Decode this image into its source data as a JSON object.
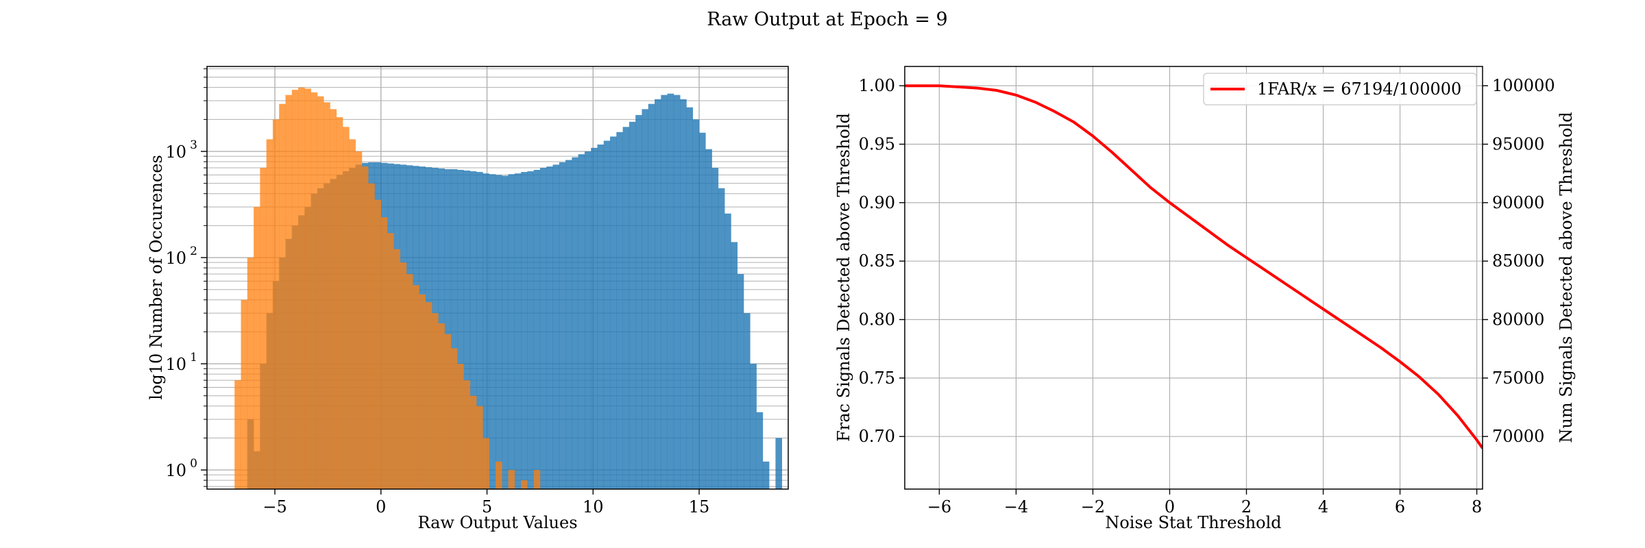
{
  "figure": {
    "suptitle": "Raw Output at Epoch = 9"
  },
  "colors": {
    "blue": "#1f77b4",
    "orange": "#ff7f0e",
    "red": "#ff0000",
    "grid": "#b0b0b0"
  },
  "chart_data": [
    {
      "type": "histogram",
      "xlabel": "Raw Output Values",
      "ylabel": "log10 Number of Occurences",
      "xlim": [
        -8.2,
        19.2
      ],
      "ylim_log10": [
        -0.18,
        3.8
      ],
      "y_scale": "log",
      "grid": true,
      "x_ticks": [
        -5,
        0,
        5,
        10,
        15
      ],
      "x_tick_labels": [
        "−5",
        "0",
        "5",
        "10",
        "15"
      ],
      "y_ticks": [
        1,
        10,
        100,
        1000
      ],
      "y_tick_labels": [
        "10",
        "10",
        "10",
        "10"
      ],
      "y_tick_exponents": [
        "0",
        "1",
        "2",
        "3"
      ],
      "series": [
        {
          "color": "blue",
          "opacity": 0.8,
          "bins": [
            [
              -6.9,
              0
            ],
            [
              -6.3,
              3
            ],
            [
              -6.0,
              1.5
            ],
            [
              -5.7,
              10
            ],
            [
              -5.4,
              30
            ],
            [
              -5.1,
              60
            ],
            [
              -4.8,
              100
            ],
            [
              -4.5,
              150
            ],
            [
              -4.2,
              200
            ],
            [
              -3.9,
              250
            ],
            [
              -3.6,
              300
            ],
            [
              -3.3,
              400
            ],
            [
              -3.0,
              450
            ],
            [
              -2.7,
              500
            ],
            [
              -2.4,
              550
            ],
            [
              -2.1,
              600
            ],
            [
              -1.8,
              650
            ],
            [
              -1.5,
              700
            ],
            [
              -1.2,
              750
            ],
            [
              -0.9,
              780
            ],
            [
              -0.6,
              790
            ],
            [
              -0.3,
              790
            ],
            [
              0.0,
              780
            ],
            [
              0.3,
              770
            ],
            [
              0.6,
              760
            ],
            [
              0.9,
              750
            ],
            [
              1.2,
              740
            ],
            [
              1.5,
              730
            ],
            [
              1.8,
              720
            ],
            [
              2.1,
              710
            ],
            [
              2.4,
              700
            ],
            [
              2.7,
              690
            ],
            [
              3.0,
              680
            ],
            [
              3.3,
              680
            ],
            [
              3.6,
              670
            ],
            [
              3.9,
              660
            ],
            [
              4.2,
              650
            ],
            [
              4.5,
              640
            ],
            [
              4.8,
              620
            ],
            [
              5.1,
              610
            ],
            [
              5.4,
              600
            ],
            [
              5.7,
              590
            ],
            [
              6.0,
              610
            ],
            [
              6.3,
              620
            ],
            [
              6.6,
              640
            ],
            [
              6.9,
              650
            ],
            [
              7.2,
              670
            ],
            [
              7.5,
              700
            ],
            [
              7.8,
              720
            ],
            [
              8.1,
              750
            ],
            [
              8.4,
              790
            ],
            [
              8.7,
              830
            ],
            [
              9.0,
              880
            ],
            [
              9.3,
              940
            ],
            [
              9.6,
              1000
            ],
            [
              9.9,
              1080
            ],
            [
              10.2,
              1160
            ],
            [
              10.5,
              1260
            ],
            [
              10.8,
              1380
            ],
            [
              11.1,
              1520
            ],
            [
              11.4,
              1700
            ],
            [
              11.7,
              1900
            ],
            [
              12.0,
              2200
            ],
            [
              12.3,
              2500
            ],
            [
              12.6,
              2800
            ],
            [
              12.9,
              3100
            ],
            [
              13.2,
              3400
            ],
            [
              13.5,
              3500
            ],
            [
              13.8,
              3400
            ],
            [
              14.1,
              3100
            ],
            [
              14.4,
              2600
            ],
            [
              14.7,
              2000
            ],
            [
              15.0,
              1500
            ],
            [
              15.3,
              1050
            ],
            [
              15.6,
              700
            ],
            [
              15.9,
              450
            ],
            [
              16.2,
              260
            ],
            [
              16.5,
              140
            ],
            [
              16.8,
              70
            ],
            [
              17.1,
              30
            ],
            [
              17.4,
              10
            ],
            [
              17.7,
              3.5
            ],
            [
              18.0,
              1.2
            ],
            [
              18.3,
              0
            ],
            [
              18.6,
              2
            ]
          ]
        },
        {
          "color": "orange",
          "opacity": 0.75,
          "bins": [
            [
              -7.2,
              0
            ],
            [
              -6.9,
              7
            ],
            [
              -6.6,
              40
            ],
            [
              -6.3,
              100
            ],
            [
              -6.0,
              300
            ],
            [
              -5.7,
              700
            ],
            [
              -5.4,
              1300
            ],
            [
              -5.1,
              2000
            ],
            [
              -4.8,
              2800
            ],
            [
              -4.5,
              3400
            ],
            [
              -4.2,
              3800
            ],
            [
              -3.9,
              4000
            ],
            [
              -3.6,
              3900
            ],
            [
              -3.3,
              3600
            ],
            [
              -3.0,
              3300
            ],
            [
              -2.7,
              2900
            ],
            [
              -2.4,
              2500
            ],
            [
              -2.1,
              2100
            ],
            [
              -1.8,
              1700
            ],
            [
              -1.5,
              1300
            ],
            [
              -1.2,
              1000
            ],
            [
              -0.9,
              720
            ],
            [
              -0.6,
              500
            ],
            [
              -0.3,
              350
            ],
            [
              0.0,
              240
            ],
            [
              0.3,
              170
            ],
            [
              0.6,
              120
            ],
            [
              0.9,
              90
            ],
            [
              1.2,
              70
            ],
            [
              1.5,
              55
            ],
            [
              1.8,
              45
            ],
            [
              2.1,
              38
            ],
            [
              2.4,
              30
            ],
            [
              2.7,
              24
            ],
            [
              3.0,
              19
            ],
            [
              3.3,
              14
            ],
            [
              3.6,
              10
            ],
            [
              3.9,
              7
            ],
            [
              4.2,
              5
            ],
            [
              4.5,
              4
            ],
            [
              4.8,
              2
            ],
            [
              5.1,
              0
            ],
            [
              5.4,
              1.2
            ],
            [
              5.7,
              0
            ],
            [
              6.0,
              1
            ],
            [
              6.3,
              0
            ],
            [
              6.6,
              0.8
            ],
            [
              6.9,
              0
            ],
            [
              7.2,
              1
            ],
            [
              7.5,
              0
            ]
          ]
        }
      ]
    },
    {
      "type": "line",
      "xlabel": "Noise Stat Threshold",
      "ylabel": "Frac Signals Detected above Threshold",
      "ylabel_right": "Num Signals Detected above Threshold",
      "xlim": [
        -6.9,
        8.15
      ],
      "ylim": [
        0.655,
        1.0165
      ],
      "ylim_right": [
        65500,
        101650
      ],
      "grid": true,
      "legend_position": "top-right",
      "x_ticks": [
        -6,
        -4,
        -2,
        0,
        2,
        4,
        6,
        8
      ],
      "x_tick_labels": [
        "−6",
        "−4",
        "−2",
        "0",
        "2",
        "4",
        "6",
        "8"
      ],
      "y_ticks": [
        0.7,
        0.75,
        0.8,
        0.85,
        0.9,
        0.95,
        1.0
      ],
      "y_tick_labels": [
        "0.70",
        "0.75",
        "0.80",
        "0.85",
        "0.90",
        "0.95",
        "1.00"
      ],
      "y_ticks_right": [
        70000,
        75000,
        80000,
        85000,
        90000,
        95000,
        100000
      ],
      "y_tick_labels_right": [
        "70000",
        "75000",
        "80000",
        "85000",
        "90000",
        "95000",
        "100000"
      ],
      "series": [
        {
          "name": "1FAR/x = 67194/100000",
          "color": "red",
          "x": [
            -6.9,
            -6,
            -5.5,
            -5,
            -4.5,
            -4,
            -3.5,
            -3,
            -2.5,
            -2,
            -1.5,
            -1,
            -0.5,
            0,
            0.5,
            1,
            1.5,
            2,
            2.5,
            3,
            3.5,
            4,
            4.5,
            5,
            5.5,
            6,
            6.5,
            7,
            7.5,
            8,
            8.15
          ],
          "y": [
            1.0,
            1.0,
            0.999,
            0.998,
            0.996,
            0.992,
            0.986,
            0.978,
            0.969,
            0.957,
            0.943,
            0.928,
            0.913,
            0.9,
            0.888,
            0.876,
            0.864,
            0.853,
            0.842,
            0.831,
            0.82,
            0.809,
            0.798,
            0.787,
            0.776,
            0.764,
            0.751,
            0.736,
            0.718,
            0.697,
            0.69
          ]
        }
      ]
    }
  ]
}
